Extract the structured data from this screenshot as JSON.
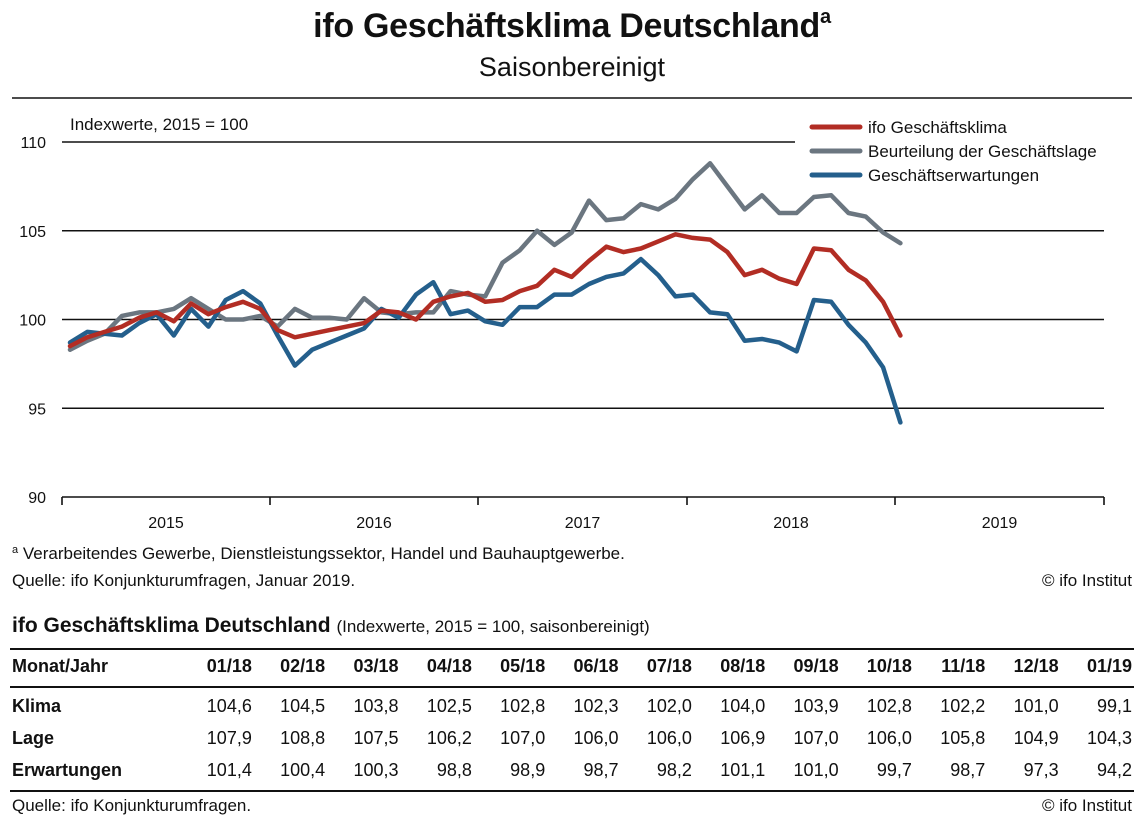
{
  "title": "ifo Geschäftsklima Deutschland",
  "title_superscript": "a",
  "subtitle": "Saisonbereinigt",
  "chart_data": {
    "type": "line",
    "title": "ifo Geschäftsklima Deutschland",
    "subtitle": "Saisonbereinigt",
    "ylabel": "Indexwerte, 2015 = 100",
    "ylim": [
      90,
      110
    ],
    "yticks": [
      90,
      95,
      100,
      105,
      110
    ],
    "grid": true,
    "legend_position": "top-right",
    "x_labels": [
      "2015",
      "2016",
      "2017",
      "2018",
      "2019"
    ],
    "x": [
      "01/15",
      "02/15",
      "03/15",
      "04/15",
      "05/15",
      "06/15",
      "07/15",
      "08/15",
      "09/15",
      "10/15",
      "11/15",
      "12/15",
      "01/16",
      "02/16",
      "03/16",
      "04/16",
      "05/16",
      "06/16",
      "07/16",
      "08/16",
      "09/16",
      "10/16",
      "11/16",
      "12/16",
      "01/17",
      "02/17",
      "03/17",
      "04/17",
      "05/17",
      "06/17",
      "07/17",
      "08/17",
      "09/17",
      "10/17",
      "11/17",
      "12/17",
      "01/18",
      "02/18",
      "03/18",
      "04/18",
      "05/18",
      "06/18",
      "07/18",
      "08/18",
      "09/18",
      "10/18",
      "11/18",
      "12/18",
      "01/19"
    ],
    "series": [
      {
        "name": "ifo Geschäftsklima",
        "color": "#b22d24",
        "values": [
          98.5,
          99.0,
          99.3,
          99.6,
          100.1,
          100.4,
          99.9,
          100.9,
          100.3,
          100.7,
          101.0,
          100.6,
          99.4,
          99.0,
          99.2,
          99.4,
          99.6,
          99.8,
          100.5,
          100.4,
          100.0,
          101.0,
          101.3,
          101.5,
          101.0,
          101.1,
          101.6,
          101.9,
          102.8,
          102.4,
          103.3,
          104.1,
          103.8,
          104.0,
          104.4,
          104.8,
          104.6,
          104.5,
          103.8,
          102.5,
          102.8,
          102.3,
          102.0,
          104.0,
          103.9,
          102.8,
          102.2,
          101.0,
          99.1
        ]
      },
      {
        "name": "Beurteilung der Geschäftslage",
        "color": "#6b7680",
        "values": [
          98.3,
          98.8,
          99.2,
          100.2,
          100.4,
          100.4,
          100.6,
          101.2,
          100.6,
          100.0,
          100.0,
          100.2,
          99.6,
          100.6,
          100.1,
          100.1,
          100.0,
          101.2,
          100.4,
          100.3,
          100.4,
          100.4,
          101.6,
          101.4,
          101.3,
          103.2,
          103.9,
          105.0,
          104.2,
          104.9,
          106.7,
          105.6,
          105.7,
          106.5,
          106.2,
          106.8,
          107.9,
          108.8,
          107.5,
          106.2,
          107.0,
          106.0,
          106.0,
          106.9,
          107.0,
          106.0,
          105.8,
          104.9,
          104.3
        ]
      },
      {
        "name": "Geschäftserwartungen",
        "color": "#245f8c",
        "values": [
          98.7,
          99.3,
          99.2,
          99.1,
          99.8,
          100.3,
          99.1,
          100.6,
          99.6,
          101.1,
          101.6,
          100.9,
          99.1,
          97.4,
          98.3,
          98.7,
          99.1,
          99.5,
          100.6,
          100.1,
          101.4,
          102.1,
          100.3,
          100.5,
          99.9,
          99.7,
          100.7,
          100.7,
          101.4,
          101.4,
          102.0,
          102.4,
          102.6,
          103.4,
          102.5,
          101.3,
          101.4,
          100.4,
          100.3,
          98.8,
          98.9,
          98.7,
          98.2,
          101.1,
          101.0,
          99.7,
          98.7,
          97.3,
          94.2
        ]
      }
    ]
  },
  "footnote_marker": "a",
  "footnote": "Verarbeitendes Gewerbe, Dienstleistungssektor, Handel und Bauhauptgewerbe.",
  "chart_source": "Quelle: ifo Konjunkturumfragen, Januar 2019.",
  "chart_copyright": "© ifo Institut",
  "table": {
    "heading": "ifo Geschäftsklima Deutschland",
    "heading_note": "(Indexwerte, 2015 = 100, saisonbereinigt)",
    "header_label": "Monat/Jahr",
    "columns": [
      "01/18",
      "02/18",
      "03/18",
      "04/18",
      "05/18",
      "06/18",
      "07/18",
      "08/18",
      "09/18",
      "10/18",
      "11/18",
      "12/18",
      "01/19"
    ],
    "rows": [
      {
        "label": "Klima",
        "values": [
          "104,6",
          "104,5",
          "103,8",
          "102,5",
          "102,8",
          "102,3",
          "102,0",
          "104,0",
          "103,9",
          "102,8",
          "102,2",
          "101,0",
          "99,1"
        ]
      },
      {
        "label": "Lage",
        "values": [
          "107,9",
          "108,8",
          "107,5",
          "106,2",
          "107,0",
          "106,0",
          "106,0",
          "106,9",
          "107,0",
          "106,0",
          "105,8",
          "104,9",
          "104,3"
        ]
      },
      {
        "label": "Erwartungen",
        "values": [
          "101,4",
          "100,4",
          "100,3",
          "98,8",
          "98,9",
          "98,7",
          "98,2",
          "101,1",
          "101,0",
          "99,7",
          "98,7",
          "97,3",
          "94,2"
        ]
      }
    ],
    "source": "Quelle: ifo Konjunkturumfragen.",
    "copyright": "© ifo Institut"
  }
}
